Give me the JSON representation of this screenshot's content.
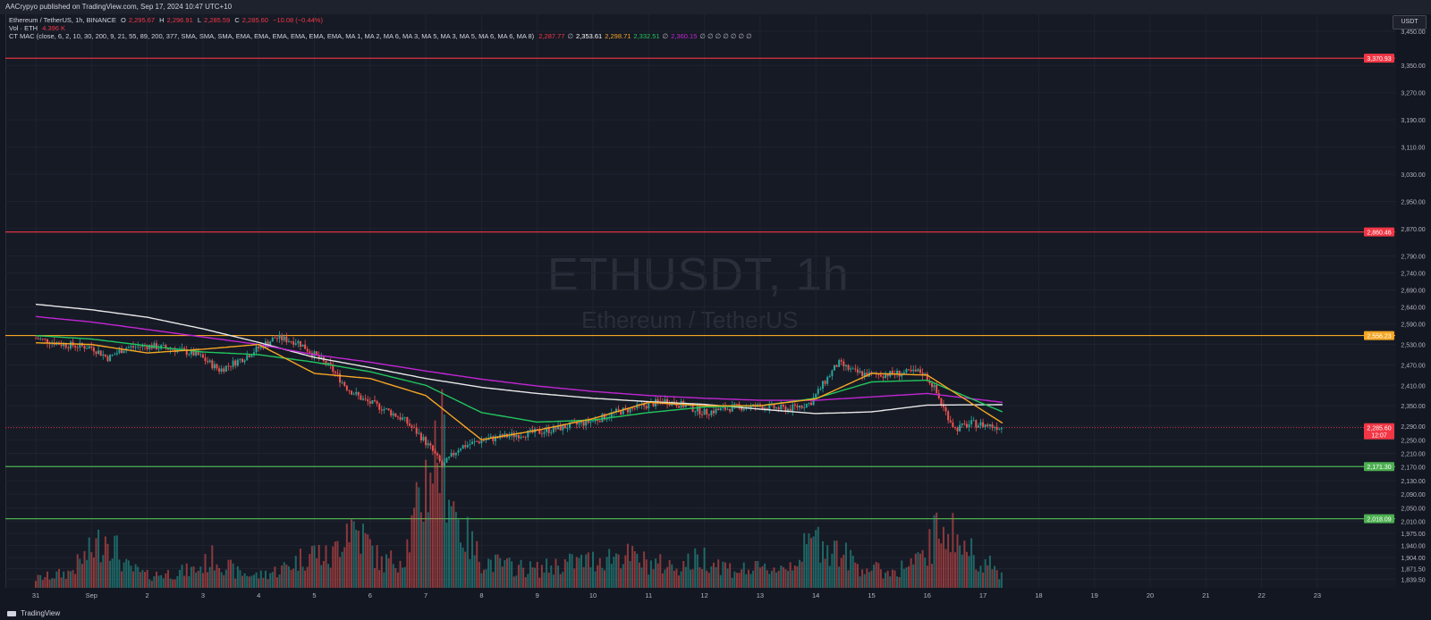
{
  "header": {
    "publisher": "AACrypyo published on TradingView.com, Sep 17, 2024 10:47 UTC+10"
  },
  "legend": {
    "symbol_line": "Ethereum / TetherUS, 1h, BINANCE",
    "ohlc": {
      "o_label": "O",
      "o_value": "2,295.67",
      "h_label": "H",
      "h_value": "2,296.91",
      "l_label": "L",
      "l_value": "2,285.59",
      "c_label": "C",
      "c_value": "2,285.60",
      "change": "−10.08 (−0.44%)"
    },
    "volume": {
      "label": "Vol · ETH",
      "value": "4.396 K"
    },
    "indicator": {
      "label": "CT MAC (close, 6, 2, 10, 30, 200, 9, 21, 55, 89, 200, 377, SMA, SMA, SMA, EMA, EMA, EMA, EMA, EMA, EMA, MA 1, MA 2, MA 6, MA 3, MA 5, MA 3, MA 5, MA 6, MA 6, MA 8)",
      "values": [
        {
          "text": "2,287.77",
          "color": "#f23645"
        },
        {
          "text": "∅",
          "color": "#b2b5be"
        },
        {
          "text": "2,353.61",
          "color": "#ffffff"
        },
        {
          "text": "2,298.71",
          "color": "#f5a623"
        },
        {
          "text": "2,332.51",
          "color": "#22c55e"
        },
        {
          "text": "∅",
          "color": "#b2b5be"
        },
        {
          "text": "2,360.15",
          "color": "#c026d3"
        },
        {
          "text": "∅ ∅ ∅ ∅ ∅ ∅ ∅",
          "color": "#b2b5be"
        }
      ]
    }
  },
  "watermark": {
    "symbol": "ETHUSDT, 1h",
    "name": "Ethereum / TetherUS"
  },
  "currency_button": "USDT",
  "footer": {
    "brand": "TradingView"
  },
  "colors": {
    "background": "#131722",
    "up": "#26a69a",
    "down": "#ef5350",
    "grid": "#1f2330",
    "resistance": "#f23645",
    "mid_level": "#f5a623",
    "support": "#4caf50"
  },
  "chart_data": {
    "type": "candlestick",
    "symbol": "ETHUSDT",
    "interval": "1h",
    "exchange": "BINANCE",
    "ylim": [
      1815,
      3500
    ],
    "y_ticks": [
      "3,450.00",
      "3,350.00",
      "3,270.00",
      "3,190.00",
      "3,110.00",
      "3,030.00",
      "2,950.00",
      "2,870.00",
      "2,790.00",
      "2,740.00",
      "2,690.00",
      "2,640.00",
      "2,590.00",
      "2,530.00",
      "2,470.00",
      "2,410.00",
      "2,350.00",
      "2,290.00",
      "2,250.00",
      "2,210.00",
      "2,170.00",
      "2,130.00",
      "2,090.00",
      "2,050.00",
      "2,010.00",
      "1,975.00",
      "1,940.00",
      "1,904.00",
      "1,871.50",
      "1,839.50"
    ],
    "x_ticks": [
      "31",
      "Sep",
      "2",
      "3",
      "4",
      "5",
      "6",
      "7",
      "8",
      "9",
      "10",
      "11",
      "12",
      "13",
      "14",
      "15",
      "16",
      "17",
      "18",
      "19",
      "20",
      "21",
      "22",
      "23"
    ],
    "horizontal_levels": [
      {
        "value": 3370.93,
        "label": "3,370.93",
        "color": "#f23645"
      },
      {
        "value": 2860.46,
        "label": "2,860.46",
        "color": "#f23645"
      },
      {
        "value": 2556.23,
        "label": "2,556.23",
        "color": "#f5a623"
      },
      {
        "value": 2171.3,
        "label": "2,171.30",
        "color": "#4caf50"
      },
      {
        "value": 2018.09,
        "label": "2,018.09",
        "color": "#4caf50"
      }
    ],
    "last_price": {
      "value": 2285.6,
      "label": "2,285.60",
      "countdown": "12:07"
    },
    "price_path": [
      [
        0,
        2548
      ],
      [
        0.5,
        2530
      ],
      [
        1,
        2522
      ],
      [
        1.3,
        2490
      ],
      [
        1.6,
        2520
      ],
      [
        2,
        2526
      ],
      [
        2.5,
        2516
      ],
      [
        2.9,
        2500
      ],
      [
        3.3,
        2455
      ],
      [
        3.7,
        2488
      ],
      [
        4,
        2520
      ],
      [
        4.3,
        2550
      ],
      [
        4.7,
        2538
      ],
      [
        5,
        2500
      ],
      [
        5.3,
        2460
      ],
      [
        5.6,
        2400
      ],
      [
        5.9,
        2365
      ],
      [
        6.2,
        2345
      ],
      [
        6.6,
        2310
      ],
      [
        6.9,
        2262
      ],
      [
        7.1,
        2222
      ],
      [
        7.3,
        2172
      ],
      [
        7.6,
        2228
      ],
      [
        8,
        2248
      ],
      [
        8.5,
        2262
      ],
      [
        9,
        2272
      ],
      [
        9.5,
        2288
      ],
      [
        10,
        2305
      ],
      [
        10.4,
        2330
      ],
      [
        10.8,
        2345
      ],
      [
        11.3,
        2365
      ],
      [
        11.7,
        2348
      ],
      [
        12,
        2330
      ],
      [
        12.5,
        2345
      ],
      [
        13,
        2348
      ],
      [
        13.5,
        2340
      ],
      [
        13.9,
        2358
      ],
      [
        14.2,
        2430
      ],
      [
        14.4,
        2475
      ],
      [
        14.7,
        2448
      ],
      [
        15,
        2440
      ],
      [
        15.5,
        2445
      ],
      [
        15.9,
        2450
      ],
      [
        16.1,
        2410
      ],
      [
        16.3,
        2340
      ],
      [
        16.5,
        2282
      ],
      [
        16.8,
        2298
      ],
      [
        17.2,
        2290
      ],
      [
        17.35,
        2285.6
      ]
    ],
    "moving_averages": [
      {
        "name": "MA 200",
        "color": "#e8e8e8",
        "points": [
          [
            0,
            2648
          ],
          [
            1,
            2632
          ],
          [
            2,
            2610
          ],
          [
            3,
            2576
          ],
          [
            4,
            2536
          ],
          [
            5,
            2492
          ],
          [
            6,
            2462
          ],
          [
            7,
            2430
          ],
          [
            8,
            2404
          ],
          [
            9,
            2386
          ],
          [
            10,
            2372
          ],
          [
            11,
            2362
          ],
          [
            12,
            2354
          ],
          [
            13,
            2340
          ],
          [
            14,
            2327
          ],
          [
            15,
            2332
          ],
          [
            16,
            2352
          ],
          [
            17.35,
            2353
          ]
        ]
      },
      {
        "name": "MA 377",
        "color": "#c026d3",
        "points": [
          [
            0,
            2612
          ],
          [
            1,
            2596
          ],
          [
            2,
            2574
          ],
          [
            3,
            2552
          ],
          [
            4,
            2530
          ],
          [
            5,
            2500
          ],
          [
            6,
            2478
          ],
          [
            7,
            2452
          ],
          [
            8,
            2428
          ],
          [
            9,
            2408
          ],
          [
            10,
            2392
          ],
          [
            11,
            2380
          ],
          [
            12,
            2372
          ],
          [
            13,
            2366
          ],
          [
            14,
            2366
          ],
          [
            15,
            2376
          ],
          [
            16,
            2386
          ],
          [
            17.35,
            2360
          ]
        ]
      },
      {
        "name": "EMA 55",
        "color": "#22c55e",
        "points": [
          [
            0,
            2556
          ],
          [
            1,
            2546
          ],
          [
            2,
            2526
          ],
          [
            3,
            2508
          ],
          [
            4,
            2500
          ],
          [
            5,
            2478
          ],
          [
            6,
            2450
          ],
          [
            7,
            2410
          ],
          [
            8,
            2330
          ],
          [
            9,
            2302
          ],
          [
            10,
            2308
          ],
          [
            11,
            2330
          ],
          [
            12,
            2346
          ],
          [
            13,
            2350
          ],
          [
            14,
            2372
          ],
          [
            15,
            2420
          ],
          [
            16,
            2425
          ],
          [
            17.35,
            2332
          ]
        ]
      },
      {
        "name": "EMA 21",
        "color": "#f5a623",
        "points": [
          [
            0,
            2535
          ],
          [
            1,
            2530
          ],
          [
            2,
            2505
          ],
          [
            3,
            2516
          ],
          [
            4,
            2530
          ],
          [
            5,
            2445
          ],
          [
            6,
            2430
          ],
          [
            7,
            2380
          ],
          [
            8,
            2250
          ],
          [
            9,
            2278
          ],
          [
            10,
            2312
          ],
          [
            11,
            2360
          ],
          [
            12,
            2350
          ],
          [
            13,
            2350
          ],
          [
            14,
            2370
          ],
          [
            15,
            2445
          ],
          [
            16,
            2440
          ],
          [
            17.35,
            2299
          ]
        ]
      }
    ],
    "volume_profile": [
      [
        0,
        3
      ],
      [
        0.6,
        5
      ],
      [
        1,
        12
      ],
      [
        1.3,
        18
      ],
      [
        1.6,
        7
      ],
      [
        2,
        4
      ],
      [
        2.5,
        5
      ],
      [
        2.9,
        6
      ],
      [
        3.2,
        10
      ],
      [
        3.6,
        5
      ],
      [
        4,
        4
      ],
      [
        4.4,
        6
      ],
      [
        4.7,
        9
      ],
      [
        5,
        12
      ],
      [
        5.3,
        9
      ],
      [
        5.6,
        22
      ],
      [
        5.9,
        16
      ],
      [
        6.2,
        8
      ],
      [
        6.6,
        10
      ],
      [
        6.9,
        28
      ],
      [
        7.1,
        42
      ],
      [
        7.3,
        46
      ],
      [
        7.6,
        20
      ],
      [
        8,
        9
      ],
      [
        8.5,
        7
      ],
      [
        9,
        6
      ],
      [
        9.5,
        8
      ],
      [
        10,
        9
      ],
      [
        10.5,
        11
      ],
      [
        11,
        8
      ],
      [
        11.5,
        7
      ],
      [
        12,
        10
      ],
      [
        12.5,
        6
      ],
      [
        13,
        6
      ],
      [
        13.5,
        7
      ],
      [
        14,
        16
      ],
      [
        14.4,
        12
      ],
      [
        14.8,
        7
      ],
      [
        15.3,
        5
      ],
      [
        15.9,
        9
      ],
      [
        16.3,
        22
      ],
      [
        16.6,
        14
      ],
      [
        17,
        9
      ],
      [
        17.35,
        4
      ]
    ]
  }
}
